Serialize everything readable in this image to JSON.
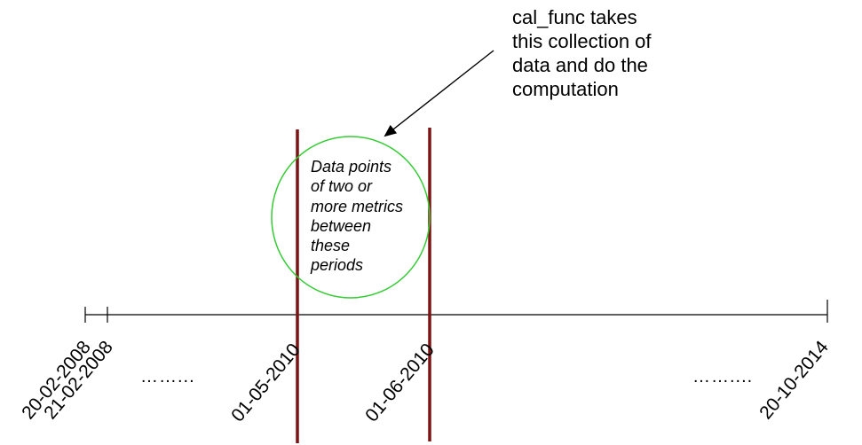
{
  "callout": {
    "lines": [
      "cal_func takes",
      "this collection of",
      "data and do the",
      "computation"
    ]
  },
  "circle_label": {
    "lines": [
      "Data points",
      "of two or",
      "more metrics",
      "between",
      "these",
      "periods"
    ]
  },
  "timeline": {
    "dates": [
      "20-02-2008",
      "21-02-2008",
      "01-05-2010",
      "01-06-2010",
      "20-10-2014"
    ],
    "ellipsis_left": "……...",
    "ellipsis_right": "……...."
  },
  "colors": {
    "axis": "#000000",
    "period_bar": "#7b1414",
    "circle": "#33cc33",
    "arrow": "#000000"
  }
}
